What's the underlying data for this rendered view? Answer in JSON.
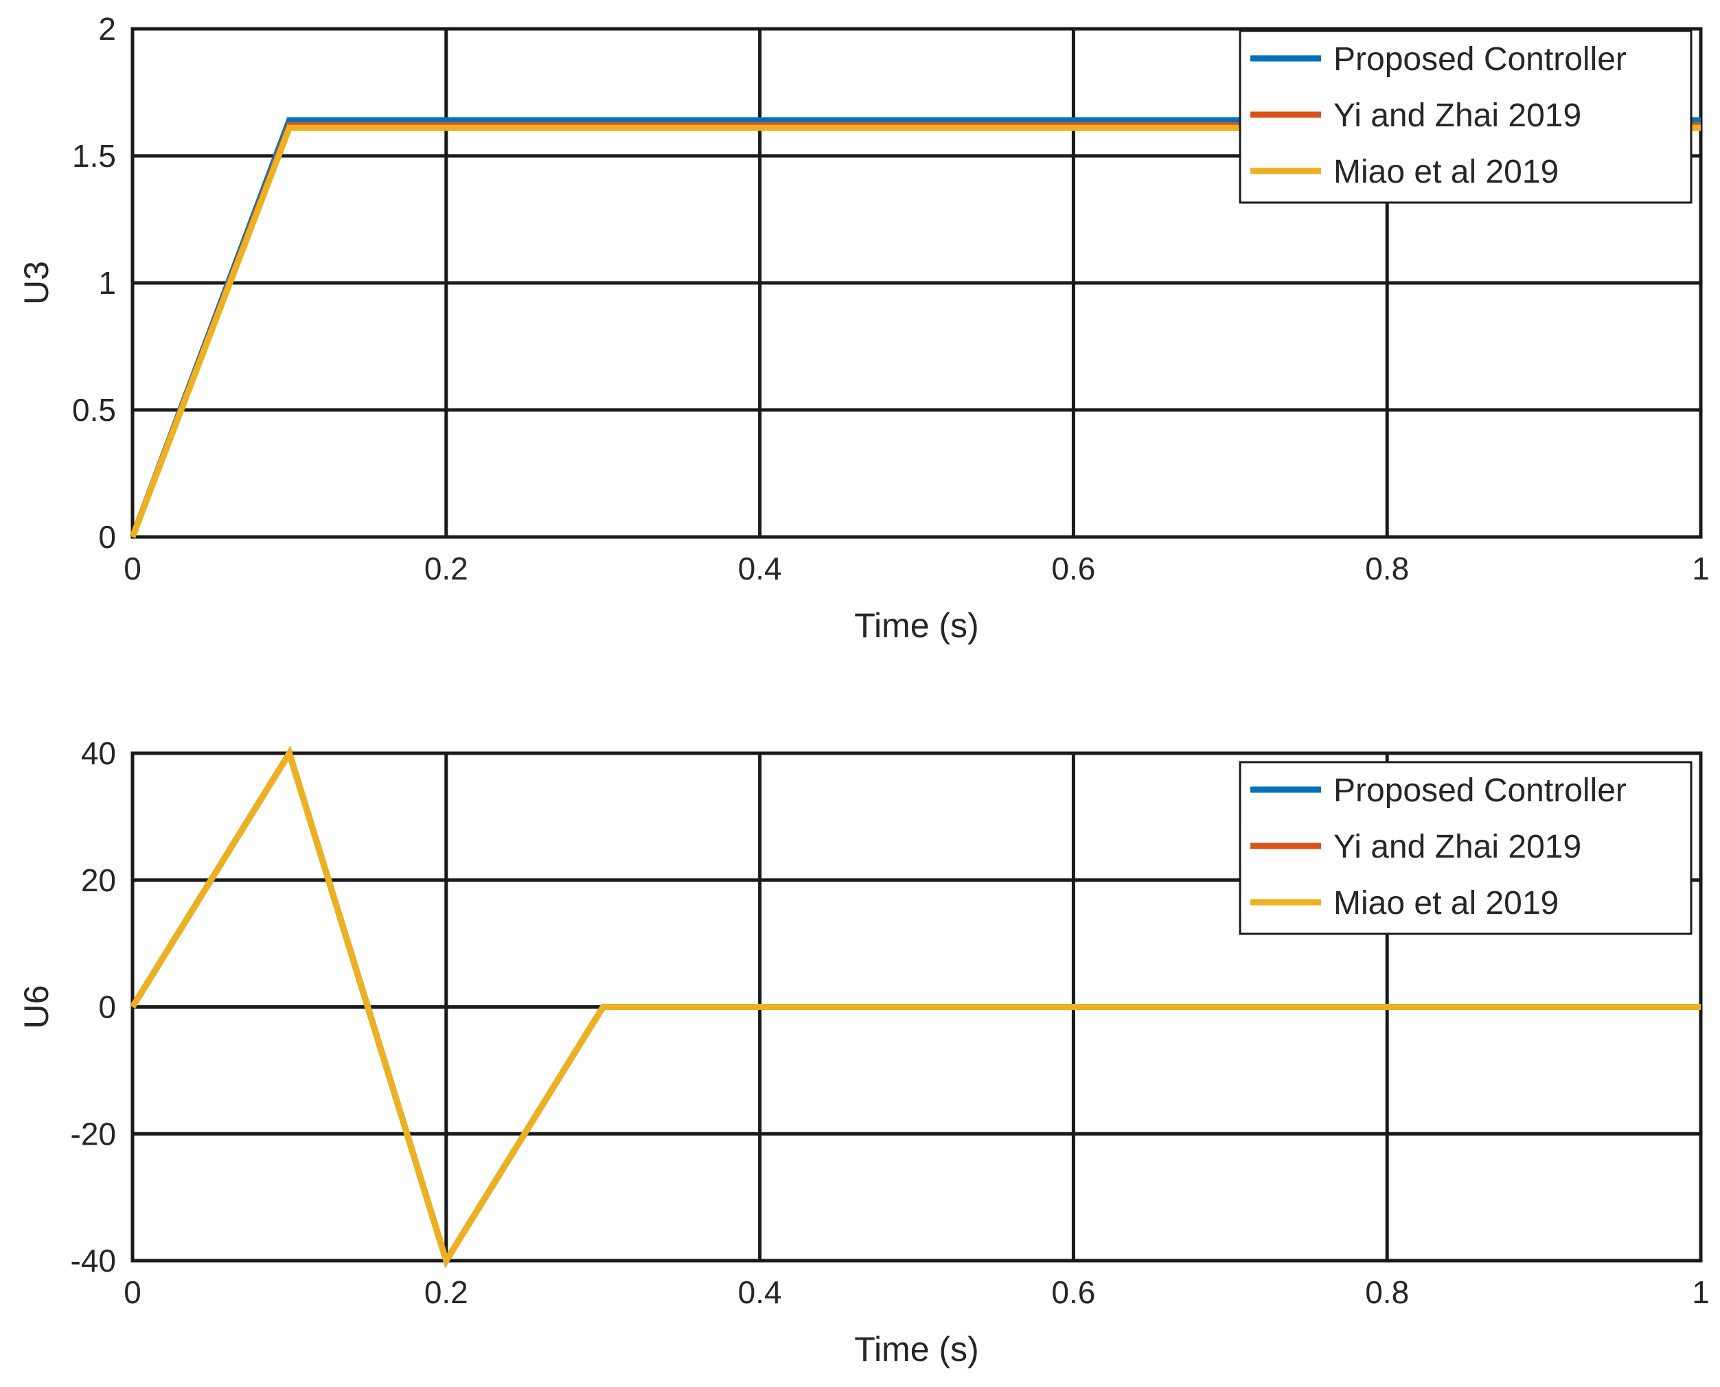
{
  "chart_data": [
    {
      "type": "line",
      "xlabel": "Time (s)",
      "ylabel": "U3",
      "xlim": [
        0,
        1
      ],
      "ylim": [
        0,
        2
      ],
      "xticks": [
        0,
        0.2,
        0.4,
        0.6,
        0.8,
        1
      ],
      "xtick_labels": [
        "0",
        "0.2",
        "0.4",
        "0.6",
        "0.8",
        "1"
      ],
      "yticks": [
        0,
        0.5,
        1,
        1.5,
        2
      ],
      "ytick_labels": [
        "0",
        "0.5",
        "1",
        "1.5",
        "2"
      ],
      "grid": true,
      "legend_position": "top-right",
      "series": [
        {
          "name": "Proposed Controller",
          "color": "#0072BD",
          "x": [
            0,
            0.1,
            1
          ],
          "y": [
            0,
            1.64,
            1.64
          ]
        },
        {
          "name": "Yi and Zhai 2019",
          "color": "#D95319",
          "x": [
            0,
            0.1,
            1
          ],
          "y": [
            0,
            1.62,
            1.62
          ]
        },
        {
          "name": "Miao et al 2019",
          "color": "#EDB120",
          "x": [
            0,
            0.1,
            1
          ],
          "y": [
            0,
            1.61,
            1.61
          ]
        }
      ]
    },
    {
      "type": "line",
      "xlabel": "Time (s)",
      "ylabel": "U6",
      "xlim": [
        0,
        1
      ],
      "ylim": [
        -40,
        40
      ],
      "xticks": [
        0,
        0.2,
        0.4,
        0.6,
        0.8,
        1
      ],
      "xtick_labels": [
        "0",
        "0.2",
        "0.4",
        "0.6",
        "0.8",
        "1"
      ],
      "yticks": [
        -40,
        -20,
        0,
        20,
        40
      ],
      "ytick_labels": [
        "-40",
        "-20",
        "0",
        "20",
        "40"
      ],
      "grid": true,
      "legend_position": "top-right",
      "series": [
        {
          "name": "Proposed Controller",
          "color": "#0072BD",
          "x": [
            0,
            0.1,
            0.2,
            0.3,
            1
          ],
          "y": [
            0,
            40,
            -40,
            0,
            0
          ]
        },
        {
          "name": "Yi and Zhai 2019",
          "color": "#D95319",
          "x": [
            0,
            0.1,
            0.2,
            0.3,
            1
          ],
          "y": [
            0,
            40,
            -40,
            0,
            0
          ]
        },
        {
          "name": "Miao et al 2019",
          "color": "#EDB120",
          "x": [
            0,
            0.1,
            0.2,
            0.3,
            1
          ],
          "y": [
            0,
            40,
            -40,
            0,
            0
          ]
        }
      ]
    }
  ]
}
